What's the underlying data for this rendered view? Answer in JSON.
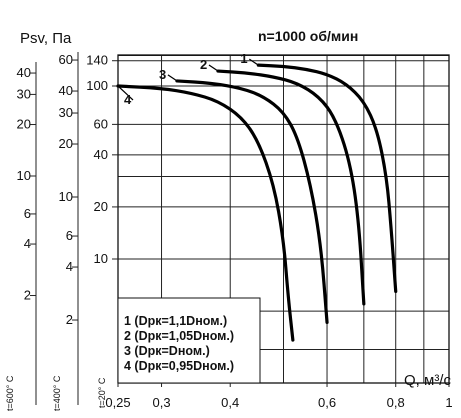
{
  "chart_data": {
    "type": "line",
    "title": "n=1000 об/мин",
    "ylabel": "Psv, Па",
    "xlabel": "Q, м³/с",
    "x_scale": "log",
    "y_scale": "log",
    "xlim": [
      0.25,
      1.0
    ],
    "x_ticks": [
      {
        "value": 0.25,
        "label": "0,25"
      },
      {
        "value": 0.3,
        "label": "0,3"
      },
      {
        "value": 0.4,
        "label": "0,4"
      },
      {
        "value": 0.6,
        "label": "0,6"
      },
      {
        "value": 0.8,
        "label": "0,8"
      },
      {
        "value": 1.0,
        "label": "1"
      }
    ],
    "y_axes": [
      {
        "title": "t=20° С",
        "ylim": [
          10.0,
          150.0
        ],
        "ticks": [
          {
            "value": 140,
            "label": "140"
          },
          {
            "value": 100,
            "label": "100"
          },
          {
            "value": 60,
            "label": "60"
          },
          {
            "value": 40,
            "label": "40"
          },
          {
            "value": 20,
            "label": "20"
          },
          {
            "value": 10,
            "label": "10"
          }
        ]
      },
      {
        "title": "t=400° С",
        "ticks": [
          {
            "value": 60,
            "label": "60"
          },
          {
            "value": 40,
            "label": "40"
          },
          {
            "value": 30,
            "label": "30"
          },
          {
            "value": 20,
            "label": "20"
          },
          {
            "value": 10,
            "label": "10"
          },
          {
            "value": 6,
            "label": "6"
          },
          {
            "value": 4,
            "label": "4"
          },
          {
            "value": 2,
            "label": "2"
          }
        ]
      },
      {
        "title": "t=600° С",
        "ticks": [
          {
            "value": 40,
            "label": "40"
          },
          {
            "value": 30,
            "label": "30"
          },
          {
            "value": 20,
            "label": "20"
          },
          {
            "value": 10,
            "label": "10"
          },
          {
            "value": 6,
            "label": "6"
          },
          {
            "value": 4,
            "label": "4"
          },
          {
            "value": 2,
            "label": "2"
          }
        ]
      }
    ],
    "series": [
      {
        "name": "1",
        "points": [
          [
            0.45,
            132
          ],
          [
            0.5,
            130
          ],
          [
            0.55,
            125
          ],
          [
            0.6,
            117
          ],
          [
            0.65,
            103
          ],
          [
            0.7,
            82
          ],
          [
            0.74,
            56
          ],
          [
            0.77,
            30
          ],
          [
            0.785,
            15
          ],
          [
            0.8,
            6.5
          ]
        ]
      },
      {
        "name": "2",
        "points": [
          [
            0.38,
            122
          ],
          [
            0.43,
            119
          ],
          [
            0.48,
            113
          ],
          [
            0.53,
            104
          ],
          [
            0.58,
            87
          ],
          [
            0.62,
            66
          ],
          [
            0.66,
            37
          ],
          [
            0.685,
            17
          ],
          [
            0.7,
            5.5
          ]
        ]
      },
      {
        "name": "3",
        "points": [
          [
            0.32,
            107
          ],
          [
            0.37,
            104
          ],
          [
            0.42,
            97
          ],
          [
            0.46,
            87
          ],
          [
            0.5,
            71
          ],
          [
            0.53,
            51
          ],
          [
            0.56,
            27
          ],
          [
            0.585,
            12
          ],
          [
            0.6,
            4.3
          ]
        ]
      },
      {
        "name": "4",
        "points": [
          [
            0.25,
            100
          ],
          [
            0.3,
            97
          ],
          [
            0.34,
            91
          ],
          [
            0.38,
            82
          ],
          [
            0.42,
            66
          ],
          [
            0.45,
            48
          ],
          [
            0.48,
            27
          ],
          [
            0.5,
            13
          ],
          [
            0.51,
            6
          ],
          [
            0.52,
            3.4
          ]
        ]
      }
    ],
    "legend": [
      "1 (Dрк=1,1Dном.)",
      "2 (Dрк=1,05Dном.)",
      "3 (Dрк=Dном.)",
      "4 (Dрк=0,95Dном.)"
    ],
    "legend_position": "bottom-left",
    "grid": true
  }
}
